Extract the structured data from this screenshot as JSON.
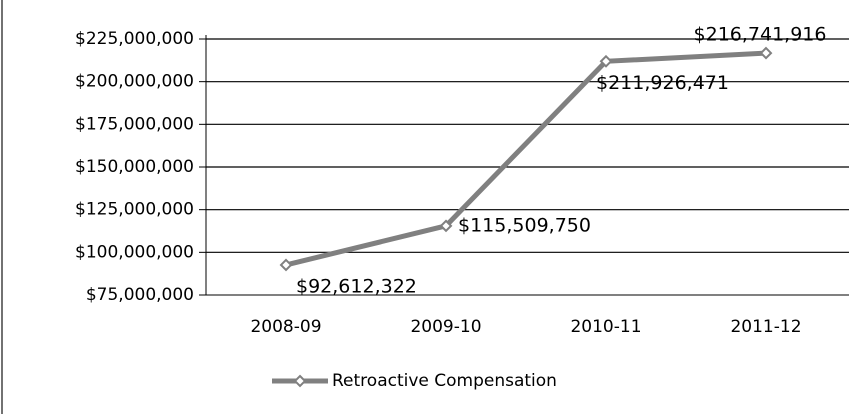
{
  "chart_data": {
    "type": "line",
    "categories": [
      "2008-09",
      "2009-10",
      "2010-11",
      "2011-12"
    ],
    "series": [
      {
        "name": "Retroactive Compensation",
        "color": "#808080",
        "values": [
          92612322,
          115509750,
          211926471,
          216741916
        ],
        "value_labels": [
          "$92,612,322",
          "$115,509,750",
          "$211,926,471",
          "$216,741,916"
        ]
      }
    ],
    "ylim": [
      75000000,
      225000000
    ],
    "yticks": [
      {
        "value": 75000000,
        "label": "$75,000,000"
      },
      {
        "value": 100000000,
        "label": "$100,000,000"
      },
      {
        "value": 125000000,
        "label": "$125,000,000"
      },
      {
        "value": 150000000,
        "label": "$150,000,000"
      },
      {
        "value": 175000000,
        "label": "$175,000,000"
      },
      {
        "value": 200000000,
        "label": "$200,000,000"
      },
      {
        "value": 225000000,
        "label": "$225,000,000"
      }
    ],
    "grid": true,
    "legend": "bottom"
  }
}
